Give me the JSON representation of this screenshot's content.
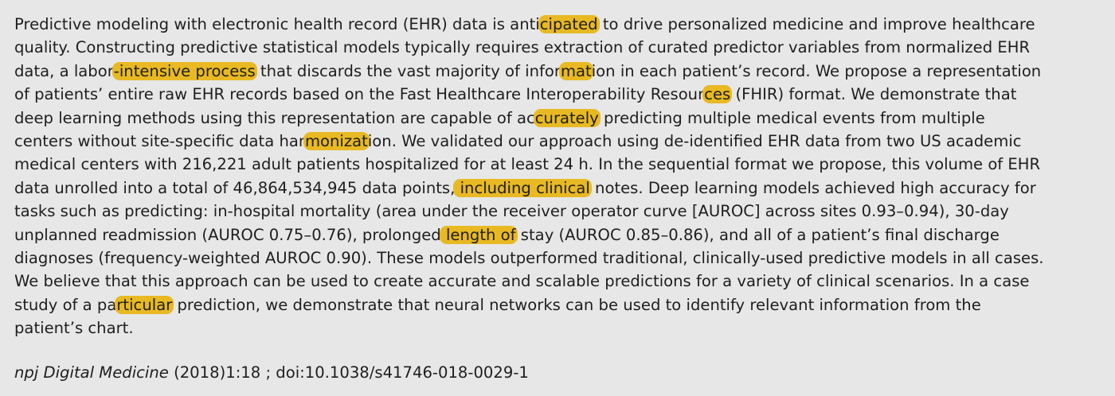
{
  "abstract": {
    "lines": [
      [
        {
          "t": "Predictive modeling with electronic health record (EHR) data is anti"
        },
        {
          "t": "cipated",
          "hl": true
        },
        {
          "t": " to drive personalized medicine and improve healthcare"
        }
      ],
      [
        {
          "t": "quality. Constructing predictive statistical models typically requires extraction of curated predictor variables from normalized EHR"
        }
      ],
      [
        {
          "t": "data, a labor"
        },
        {
          "t": "-intensive process",
          "hl": true
        },
        {
          "t": " that discards the vast majority of infor"
        },
        {
          "t": "mat",
          "hl": true
        },
        {
          "t": "ion in each patient’s record. We propose a representation"
        }
      ],
      [
        {
          "t": "of patients’ entire raw EHR records based on the Fast Healthcare Interoperability Resour"
        },
        {
          "t": "ces",
          "hl": true
        },
        {
          "t": " (FHIR) format. We demonstrate that"
        }
      ],
      [
        {
          "t": "deep learning methods using this representation are capable of ac"
        },
        {
          "t": "curately",
          "hl": true
        },
        {
          "t": " predicting multiple medical events from multiple"
        }
      ],
      [
        {
          "t": "centers without site-specific data har"
        },
        {
          "t": "monizat",
          "hl": true
        },
        {
          "t": "ion. We validated our approach using de-identified EHR data from two US academic"
        }
      ],
      [
        {
          "t": "medical centers with 216,221 adult patients hospitalized for at least 24 h. In the sequential format we propose, this volume of EHR"
        }
      ],
      [
        {
          "t": "data unrolled into a total of 46,864,534,945 data points,"
        },
        {
          "t": " including clinical",
          "hl": true
        },
        {
          "t": " notes. Deep learning models achieved high accuracy for"
        }
      ],
      [
        {
          "t": "tasks such as predicting: in-hospital mortality (area under the receiver operator curve [AUROC] across sites 0.93–0.94), 30-day"
        }
      ],
      [
        {
          "t": "unplanned readmission (AUROC 0.75–0.76), prolonged"
        },
        {
          "t": " length of",
          "hl": true
        },
        {
          "t": " stay (AUROC 0.85–0.86), and all of a patient’s final discharge"
        }
      ],
      [
        {
          "t": "diagnoses (frequency-weighted AUROC 0.90). These models outperformed traditional, clinically-used predictive models in all cases."
        }
      ],
      [
        {
          "t": "We believe that this approach can be used to create accurate and scalable predictions for a variety of clinical scenarios. In a case"
        }
      ],
      [
        {
          "t": "study of a pa"
        },
        {
          "t": "rticular",
          "hl": true
        },
        {
          "t": " prediction, we demonstrate that neural networks can be used to identify relevant information from the"
        }
      ],
      [
        {
          "t": "patient’s chart."
        }
      ]
    ]
  },
  "citation": {
    "journal": "npj Digital Medicine",
    "rest": " (2018)1:18 ; doi:10.1038/s41746-018-0029-1"
  },
  "colors": {
    "highlight": "#e8b923",
    "background": "#e7e7e7",
    "text": "#1e1e1e"
  }
}
